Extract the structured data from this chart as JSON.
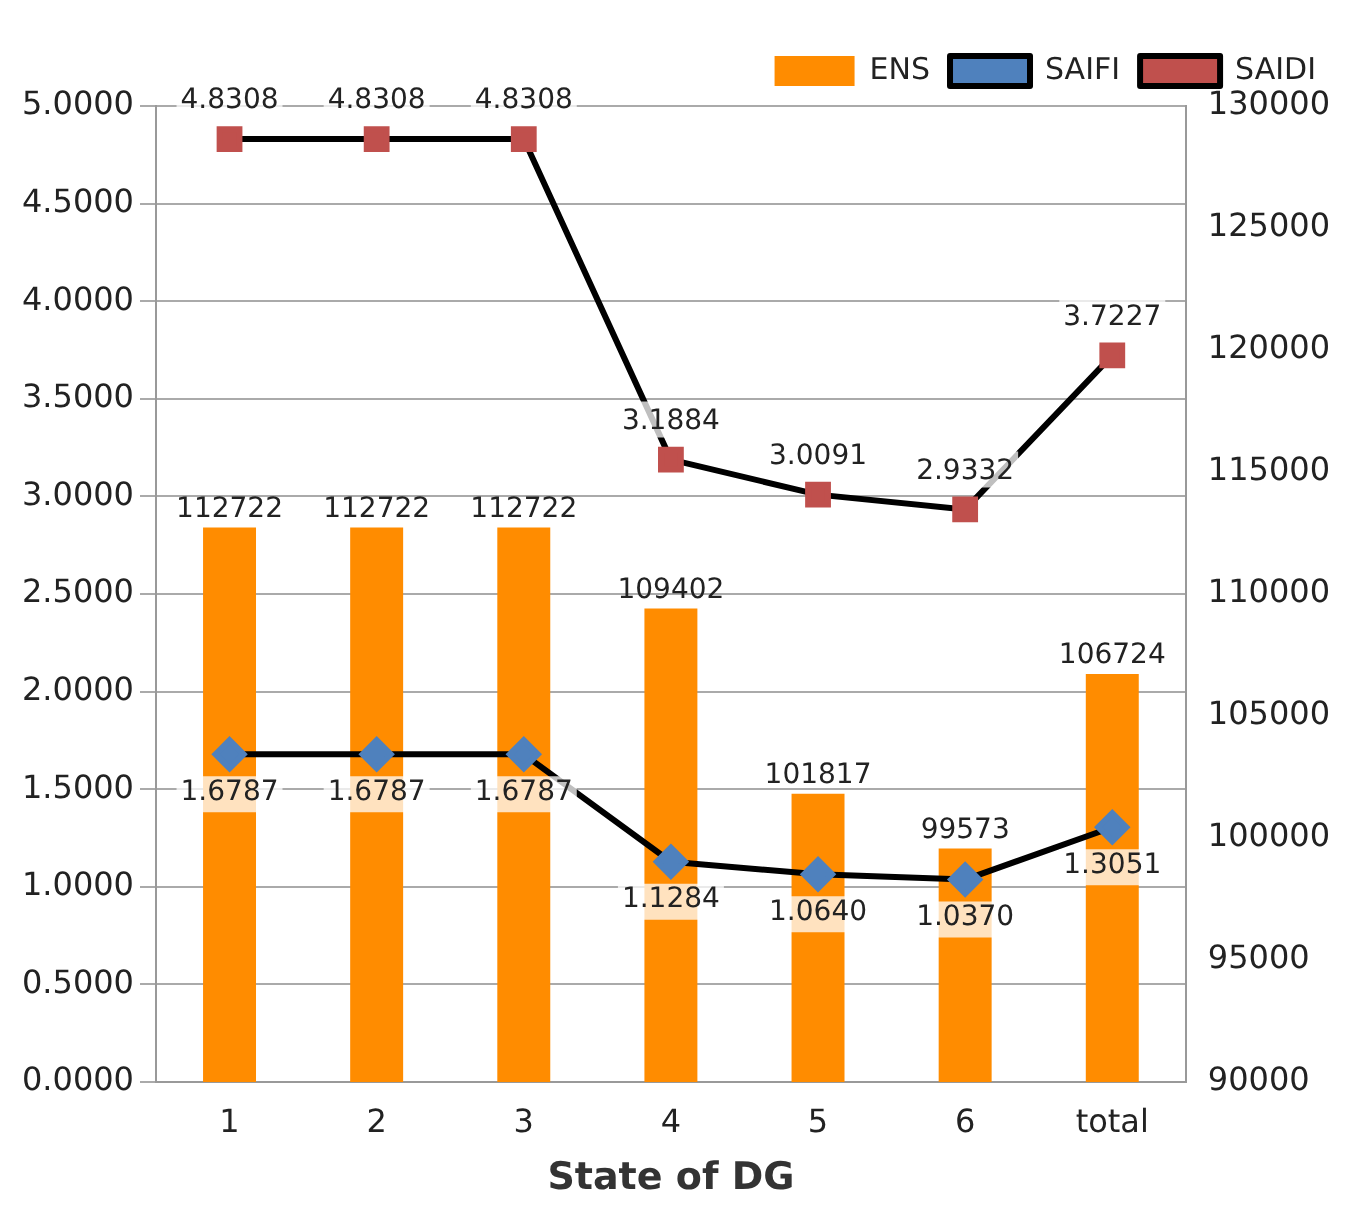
{
  "chart_data": {
    "type": "bar",
    "xlabel": "State of DG",
    "categories": [
      "1",
      "2",
      "3",
      "4",
      "5",
      "6",
      "total"
    ],
    "series": [
      {
        "name": "ENS",
        "axis": "y2",
        "color": "#ff8c00",
        "values": [
          112722,
          112722,
          112722,
          109402,
          101817,
          99573,
          106724
        ],
        "value_labels": [
          "112722",
          "112722",
          "112722",
          "109402",
          "101817",
          "99573",
          "106724"
        ]
      },
      {
        "name": "SAIFI",
        "type": "line",
        "color": "#4f81bd",
        "marker": "diamond",
        "values": [
          1.6787,
          1.6787,
          1.6787,
          1.1284,
          1.064,
          1.037,
          1.3051
        ],
        "value_labels": [
          "1.6787",
          "1.6787",
          "1.6787",
          "1.1284",
          "1.0640",
          "1.0370",
          "1.3051"
        ]
      },
      {
        "name": "SAIDI",
        "type": "line",
        "color": "#c0504d",
        "marker": "square",
        "values": [
          4.8308,
          4.8308,
          4.8308,
          3.1884,
          3.0091,
          2.9332,
          3.7227
        ],
        "value_labels": [
          "4.8308",
          "4.8308",
          "4.8308",
          "3.1884",
          "3.0091",
          "2.9332",
          "3.7227"
        ]
      }
    ],
    "ylim": [
      0,
      5
    ],
    "yticks": [
      {
        "value": 0,
        "label": "0.0000"
      },
      {
        "value": 0.5,
        "label": "0.5000"
      },
      {
        "value": 1,
        "label": "1.0000"
      },
      {
        "value": 1.5,
        "label": "1.5000"
      },
      {
        "value": 2,
        "label": "2.0000"
      },
      {
        "value": 2.5,
        "label": "2.5000"
      },
      {
        "value": 3,
        "label": "3.0000"
      },
      {
        "value": 3.5,
        "label": "3.5000"
      },
      {
        "value": 4,
        "label": "4.0000"
      },
      {
        "value": 4.5,
        "label": "4.5000"
      },
      {
        "value": 5,
        "label": "5.0000"
      }
    ],
    "y2lim": [
      90000,
      130000
    ],
    "y2ticks": [
      90000,
      95000,
      100000,
      105000,
      110000,
      115000,
      120000,
      125000,
      130000
    ],
    "grid": "y",
    "legend": "top right"
  }
}
